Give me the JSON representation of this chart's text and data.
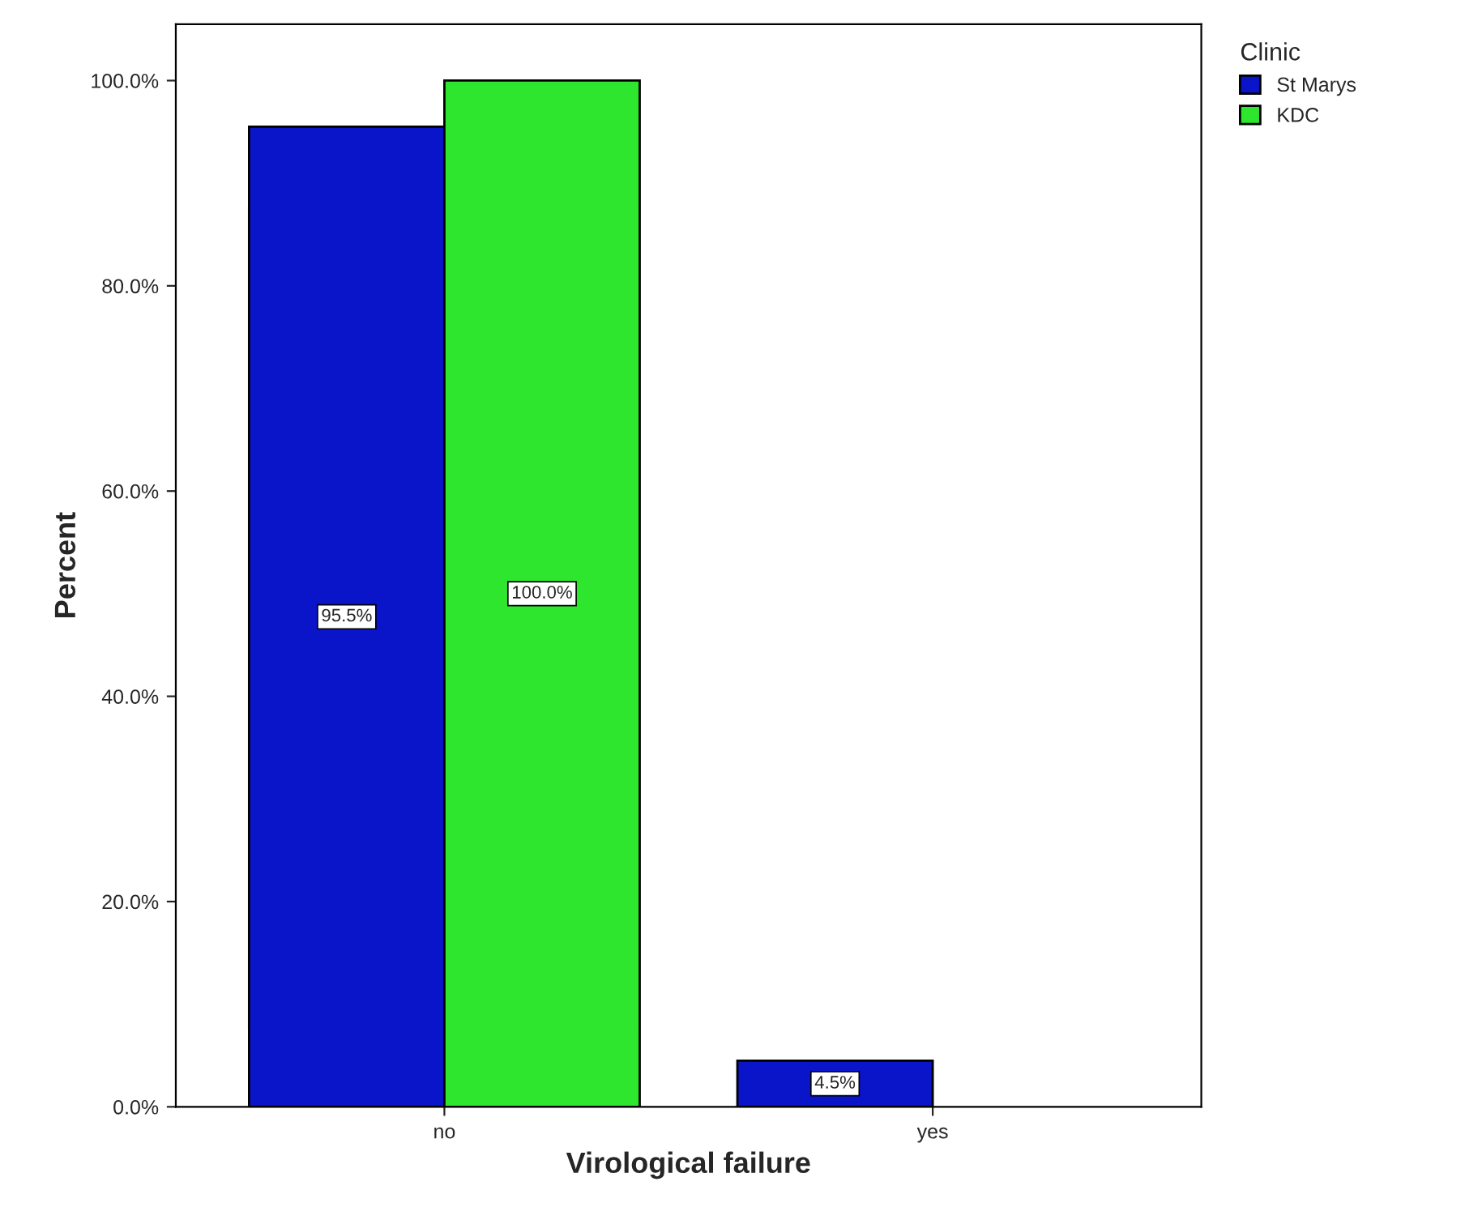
{
  "chart_data": {
    "type": "bar",
    "xlabel": "Virological failure",
    "ylabel": "Percent",
    "legend_title": "Clinic",
    "categories": [
      "no",
      "yes"
    ],
    "series": [
      {
        "name": "St Marys",
        "color": "#0a14c8",
        "values": [
          95.5,
          4.5
        ],
        "value_labels": [
          "95.5%",
          "4.5%"
        ]
      },
      {
        "name": "KDC",
        "color": "#2fe62f",
        "values": [
          100.0,
          0.0
        ],
        "value_labels": [
          "100.0%",
          null
        ]
      }
    ],
    "ylim": [
      0,
      105.5
    ],
    "yticks": [
      {
        "value": 0,
        "label": "0.0%"
      },
      {
        "value": 20,
        "label": "20.0%"
      },
      {
        "value": 40,
        "label": "40.0%"
      },
      {
        "value": 60,
        "label": "60.0%"
      },
      {
        "value": 80,
        "label": "80.0%"
      },
      {
        "value": 100,
        "label": "100.0%"
      }
    ],
    "grid": false,
    "legend": "top right"
  }
}
